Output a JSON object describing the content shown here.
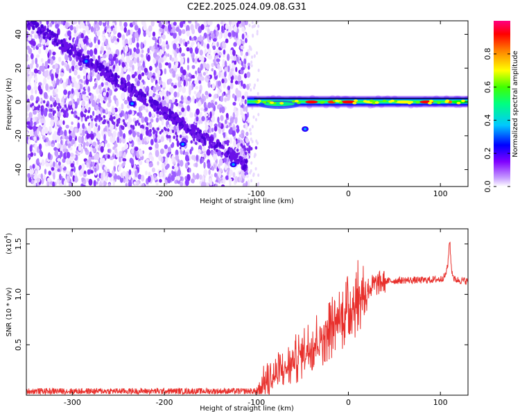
{
  "title": "C2E2.2025.024.09.08.G31",
  "colors": {
    "snr_line": "#e8302c",
    "frame": "#000000"
  },
  "chart_data": [
    {
      "type": "heatmap",
      "xlabel": "Height of straight line (km)",
      "ylabel": "Frequency (Hz)",
      "xlim": [
        -350,
        130
      ],
      "ylim": [
        -50,
        48
      ],
      "xticks": [
        -300,
        -200,
        -100,
        0,
        100
      ],
      "yticks": [
        -40,
        -20,
        0,
        20,
        40
      ],
      "colorbar": {
        "label": "Normalized spectral amplitude",
        "range": [
          0.0,
          1.0
        ],
        "ticks": [
          "0.0",
          "0.2",
          "0.4",
          "0.6",
          "0.8"
        ],
        "tick_values": [
          0.0,
          0.2,
          0.4,
          0.6,
          0.8
        ],
        "colormap": [
          "#ffffff",
          "#8000ff",
          "#0000ff",
          "#00ffff",
          "#00ff00",
          "#ffff00",
          "#ff8000",
          "#ff0000",
          "#ff00ff"
        ]
      },
      "features": {
        "noise_region_x": [
          -350,
          -108
        ],
        "diagonal_track": {
          "x": [
            -350,
            -110
          ],
          "y": [
            48,
            -38
          ]
        },
        "signal_track": {
          "x": [
            -110,
            130
          ],
          "y": [
            0,
            0
          ]
        },
        "spots": [
          {
            "x": -285,
            "y": 24,
            "amp": 0.3
          },
          {
            "x": -235,
            "y": -1,
            "amp": 0.3
          },
          {
            "x": -180,
            "y": -25,
            "amp": 0.25
          },
          {
            "x": -125,
            "y": -37,
            "amp": 0.3
          },
          {
            "x": -47,
            "y": -16,
            "amp": 0.4
          }
        ]
      }
    },
    {
      "type": "line",
      "xlabel": "Height of straight line (km)",
      "ylabel": "SNR (10 * v/v)",
      "y_multiplier": "(x10",
      "y_multiplier_exp": "4",
      "y_multiplier_close": ")",
      "xlim": [
        -350,
        130
      ],
      "ylim": [
        0,
        16500
      ],
      "xticks": [
        -300,
        -200,
        -100,
        0,
        100
      ],
      "yticks": [
        5000,
        10000,
        15000
      ],
      "ytick_labels": [
        "0.5",
        "1.0",
        "1.5"
      ],
      "series": [
        {
          "x": [
            -350,
            -200,
            -100,
            -90,
            -70,
            -50,
            -30,
            -10,
            0,
            10,
            20,
            30,
            40,
            60,
            80,
            100,
            105,
            108,
            110,
            112,
            115,
            120,
            130
          ],
          "y": [
            400,
            400,
            400,
            1200,
            2500,
            4200,
            5800,
            7500,
            8500,
            9600,
            10500,
            11000,
            11300,
            11400,
            11400,
            11500,
            11800,
            12800,
            15500,
            12500,
            11500,
            11400,
            11300
          ]
        }
      ]
    }
  ]
}
